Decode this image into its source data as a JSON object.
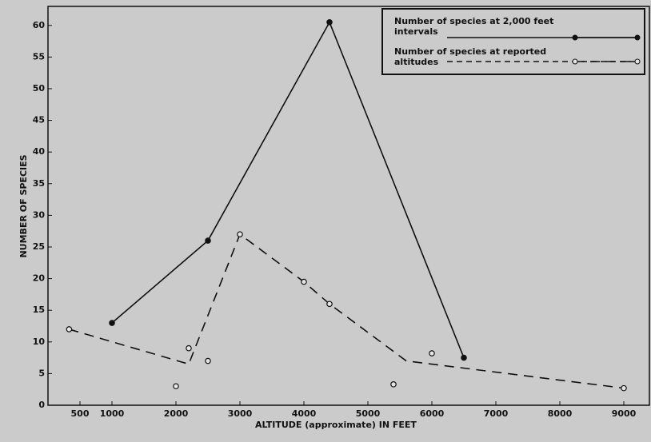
{
  "chart_data": {
    "type": "line",
    "xlabel": "ALTITUDE (approximate)  IN  FEET",
    "ylabel": "NUMBER  OF  SPECIES",
    "xlim": [
      0,
      9400
    ],
    "xticks": [
      500,
      1000,
      2000,
      3000,
      4000,
      5000,
      6000,
      7000,
      8000,
      9000
    ],
    "ylim": [
      0,
      63
    ],
    "yticks": [
      0,
      5,
      10,
      15,
      20,
      25,
      30,
      35,
      40,
      45,
      50,
      55,
      60
    ],
    "legend": "upper right",
    "series": [
      {
        "name": "Number of species at 2,000 feet intervals",
        "color": "#111111",
        "style": "solid",
        "marker": "filled",
        "x": [
          1000,
          2500,
          4400,
          6500
        ],
        "values": [
          13,
          26,
          60.5,
          7.5
        ]
      },
      {
        "name": "Number of species at reported altitudes",
        "color": "#111111",
        "style": "dashed",
        "marker": "open",
        "x": [
          330,
          2000,
          2200,
          2500,
          3000,
          4000,
          4400,
          5400,
          6000,
          9000
        ],
        "values": [
          12,
          3,
          9,
          7,
          27,
          19.5,
          16,
          3.3,
          8.2,
          2.7
        ],
        "line_x": [
          330,
          2200,
          3000,
          4000,
          4400,
          5600,
          9000
        ],
        "line_values": [
          12,
          6.5,
          27,
          19.5,
          16,
          7,
          2.7
        ]
      }
    ]
  }
}
